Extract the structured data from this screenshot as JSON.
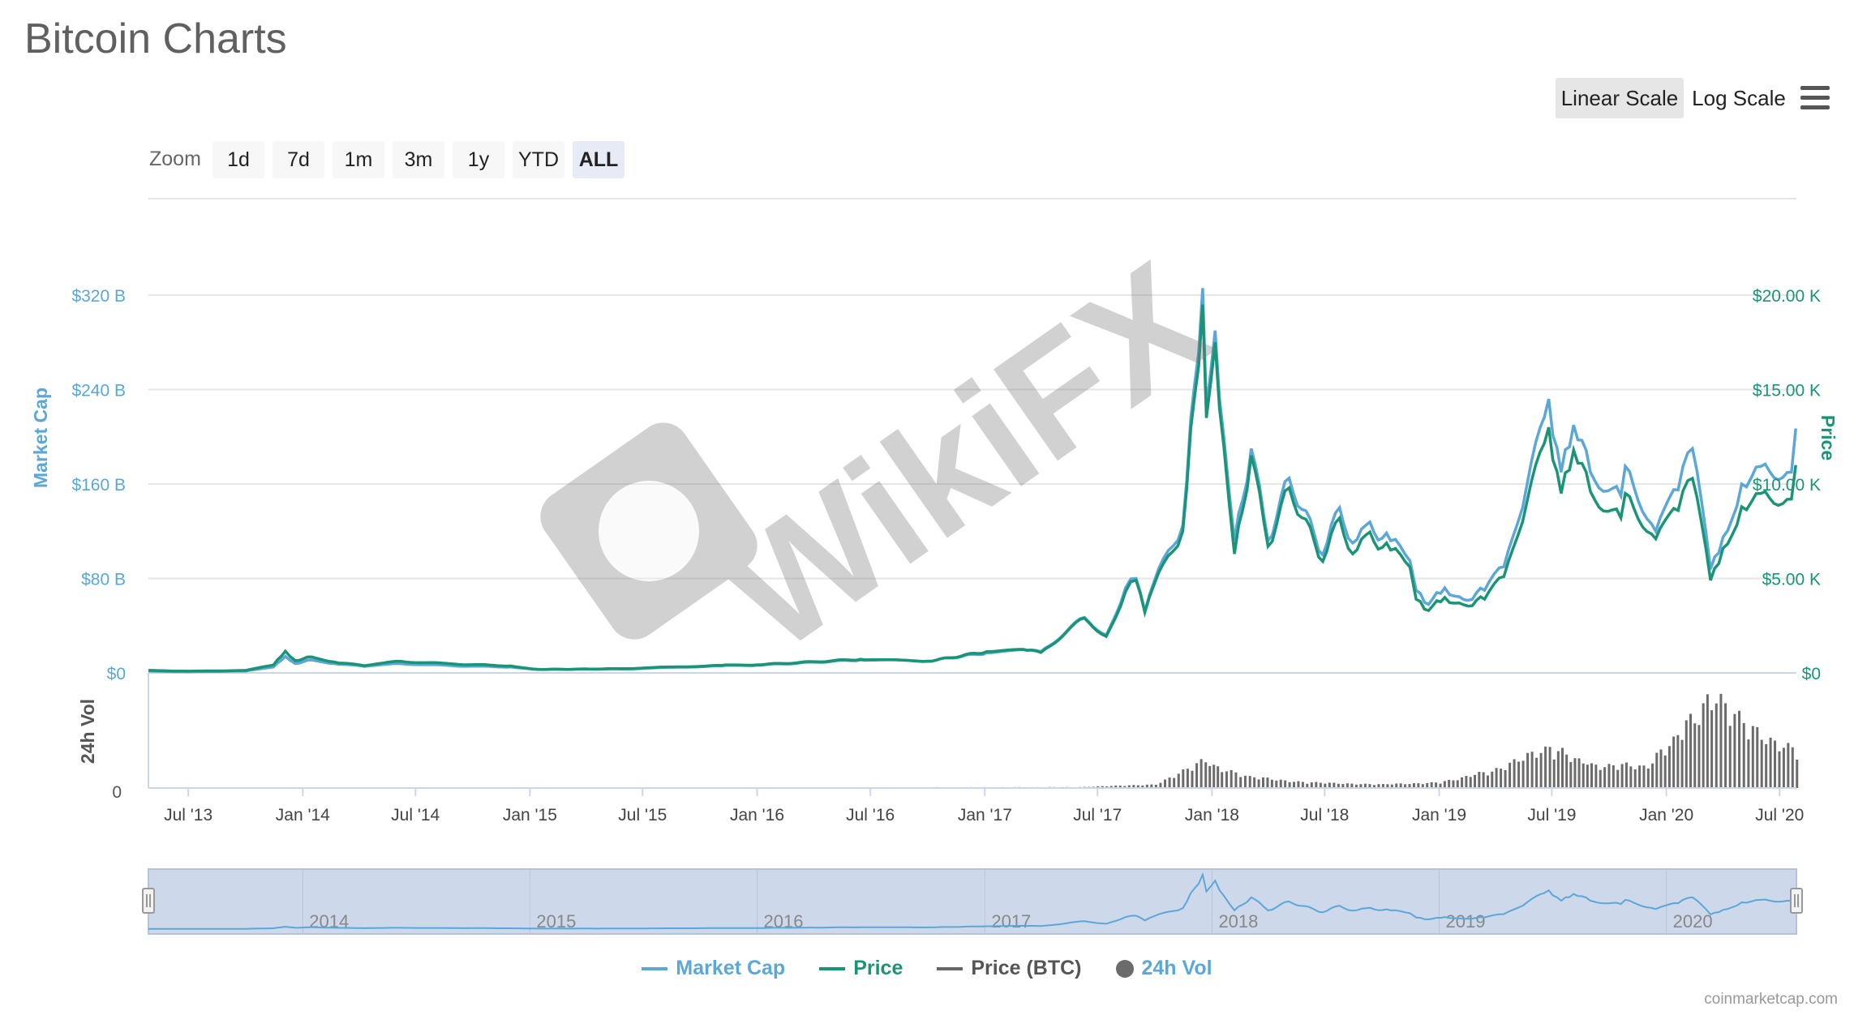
{
  "title": "Bitcoin Charts",
  "scale_buttons": {
    "linear": "Linear Scale",
    "log": "Log Scale",
    "active": "linear"
  },
  "zoom": {
    "label": "Zoom",
    "buttons": [
      "1d",
      "7d",
      "1m",
      "3m",
      "1y",
      "YTD",
      "ALL"
    ],
    "active": "ALL"
  },
  "watermark": "WikiFX",
  "credit": "coinmarketcap.com",
  "colors": {
    "market_cap": "#5aa7d8",
    "price": "#1a9476",
    "price_btc": "#666666",
    "volume": "#6b6b6b",
    "navigator_fill": "#cdd8ea"
  },
  "chart_data": {
    "type": "line",
    "x_labels": [
      "Jul '13",
      "Jan '14",
      "Jul '14",
      "Jan '15",
      "Jul '15",
      "Jan '16",
      "Jul '16",
      "Jan '17",
      "Jul '17",
      "Jan '18",
      "Jul '18",
      "Jan '19",
      "Jul '19",
      "Jan '20",
      "Jul '20"
    ],
    "x_range": [
      "2013-04-28",
      "2020-07-28"
    ],
    "left_axis": {
      "label": "Market Cap",
      "ticks": [
        "$0",
        "$80 B",
        "$160 B",
        "$240 B",
        "$320 B"
      ],
      "range": [
        0,
        320
      ]
    },
    "right_axis": {
      "label": "Price",
      "ticks": [
        "$0",
        "$5.00 K",
        "$10.00 K",
        "$15.00 K",
        "$20.00 K"
      ],
      "range": [
        0,
        20000
      ]
    },
    "volume_axis": {
      "label": "24h Vol",
      "ticks": [
        "0"
      ]
    },
    "navigator_labels": [
      "2014",
      "2015",
      "2016",
      "2017",
      "2018",
      "2019",
      "2020"
    ],
    "legend": [
      "Market Cap",
      "Price",
      "Price (BTC)",
      "24h Vol"
    ],
    "series": [
      {
        "name": "Market Cap",
        "unit": "billion USD",
        "points": [
          [
            "2013-04-28",
            1.5
          ],
          [
            "2013-07-01",
            1.0
          ],
          [
            "2013-10-01",
            1.6
          ],
          [
            "2013-11-15",
            5
          ],
          [
            "2013-12-04",
            14
          ],
          [
            "2013-12-20",
            8
          ],
          [
            "2014-01-15",
            11
          ],
          [
            "2014-02-20",
            8
          ],
          [
            "2014-04-10",
            5.5
          ],
          [
            "2014-06-01",
            8
          ],
          [
            "2014-09-01",
            6
          ],
          [
            "2014-12-01",
            5
          ],
          [
            "2015-01-15",
            3
          ],
          [
            "2015-06-01",
            3.3
          ],
          [
            "2015-11-05",
            6
          ],
          [
            "2016-01-01",
            6.5
          ],
          [
            "2016-06-15",
            11
          ],
          [
            "2016-10-01",
            10
          ],
          [
            "2017-01-04",
            17
          ],
          [
            "2017-03-10",
            19
          ],
          [
            "2017-04-01",
            18
          ],
          [
            "2017-06-10",
            47
          ],
          [
            "2017-07-15",
            32
          ],
          [
            "2017-08-15",
            72
          ],
          [
            "2017-09-01",
            80
          ],
          [
            "2017-09-15",
            52
          ],
          [
            "2017-10-15",
            97
          ],
          [
            "2017-11-15",
            125
          ],
          [
            "2017-12-17",
            326
          ],
          [
            "2017-12-23",
            225
          ],
          [
            "2018-01-06",
            290
          ],
          [
            "2018-01-20",
            200
          ],
          [
            "2018-02-06",
            112
          ],
          [
            "2018-03-05",
            190
          ],
          [
            "2018-04-01",
            112
          ],
          [
            "2018-05-05",
            165
          ],
          [
            "2018-06-28",
            100
          ],
          [
            "2018-07-25",
            140
          ],
          [
            "2018-08-15",
            110
          ],
          [
            "2018-09-05",
            125
          ],
          [
            "2018-10-15",
            112
          ],
          [
            "2018-11-15",
            95
          ],
          [
            "2018-11-25",
            70
          ],
          [
            "2018-12-15",
            58
          ],
          [
            "2019-01-10",
            72
          ],
          [
            "2019-02-10",
            62
          ],
          [
            "2019-03-15",
            70
          ],
          [
            "2019-04-15",
            90
          ],
          [
            "2019-05-15",
            140
          ],
          [
            "2019-06-26",
            232
          ],
          [
            "2019-07-16",
            170
          ],
          [
            "2019-08-05",
            210
          ],
          [
            "2019-09-01",
            170
          ],
          [
            "2019-10-20",
            150
          ],
          [
            "2019-10-27",
            175
          ],
          [
            "2019-12-15",
            120
          ],
          [
            "2020-01-20",
            155
          ],
          [
            "2020-02-12",
            190
          ],
          [
            "2020-03-12",
            88
          ],
          [
            "2020-04-01",
            115
          ],
          [
            "2020-05-01",
            160
          ],
          [
            "2020-06-01",
            175
          ],
          [
            "2020-07-20",
            170
          ],
          [
            "2020-07-27",
            207
          ]
        ]
      },
      {
        "name": "Price",
        "unit": "USD",
        "points": [
          [
            "2013-04-28",
            135
          ],
          [
            "2013-07-01",
            90
          ],
          [
            "2013-10-01",
            130
          ],
          [
            "2013-11-15",
            420
          ],
          [
            "2013-12-04",
            1150
          ],
          [
            "2013-12-20",
            650
          ],
          [
            "2014-01-15",
            850
          ],
          [
            "2014-02-20",
            580
          ],
          [
            "2014-04-10",
            380
          ],
          [
            "2014-06-01",
            620
          ],
          [
            "2014-09-01",
            470
          ],
          [
            "2014-12-01",
            370
          ],
          [
            "2015-01-15",
            180
          ],
          [
            "2015-06-01",
            225
          ],
          [
            "2015-11-05",
            400
          ],
          [
            "2016-01-01",
            430
          ],
          [
            "2016-06-15",
            720
          ],
          [
            "2016-10-01",
            610
          ],
          [
            "2017-01-04",
            1130
          ],
          [
            "2017-03-10",
            1200
          ],
          [
            "2017-04-01",
            1080
          ],
          [
            "2017-06-10",
            2900
          ],
          [
            "2017-07-15",
            1930
          ],
          [
            "2017-08-15",
            4300
          ],
          [
            "2017-09-01",
            4900
          ],
          [
            "2017-09-15",
            3200
          ],
          [
            "2017-10-15",
            5800
          ],
          [
            "2017-11-15",
            7500
          ],
          [
            "2017-12-17",
            19500
          ],
          [
            "2017-12-23",
            13500
          ],
          [
            "2018-01-06",
            17500
          ],
          [
            "2018-01-20",
            12000
          ],
          [
            "2018-02-06",
            6300
          ],
          [
            "2018-03-05",
            11500
          ],
          [
            "2018-04-01",
            6700
          ],
          [
            "2018-05-05",
            9800
          ],
          [
            "2018-06-28",
            5900
          ],
          [
            "2018-07-25",
            8200
          ],
          [
            "2018-08-15",
            6300
          ],
          [
            "2018-09-05",
            7300
          ],
          [
            "2018-10-15",
            6500
          ],
          [
            "2018-11-15",
            5600
          ],
          [
            "2018-11-25",
            3900
          ],
          [
            "2018-12-15",
            3300
          ],
          [
            "2019-01-10",
            4000
          ],
          [
            "2019-02-10",
            3600
          ],
          [
            "2019-03-15",
            3900
          ],
          [
            "2019-04-15",
            5100
          ],
          [
            "2019-05-15",
            8000
          ],
          [
            "2019-06-26",
            13000
          ],
          [
            "2019-07-16",
            9500
          ],
          [
            "2019-08-05",
            11800
          ],
          [
            "2019-09-01",
            9600
          ],
          [
            "2019-10-20",
            8200
          ],
          [
            "2019-10-27",
            9500
          ],
          [
            "2019-12-15",
            7100
          ],
          [
            "2020-01-20",
            8600
          ],
          [
            "2020-02-12",
            10300
          ],
          [
            "2020-03-12",
            4900
          ],
          [
            "2020-04-01",
            6600
          ],
          [
            "2020-05-01",
            8800
          ],
          [
            "2020-06-01",
            9500
          ],
          [
            "2020-07-20",
            9200
          ],
          [
            "2020-07-27",
            11000
          ]
        ]
      },
      {
        "name": "24h Vol",
        "unit": "relative",
        "points": [
          [
            "2013-04-28",
            0
          ],
          [
            "2017-06-01",
            0.01
          ],
          [
            "2017-10-01",
            0.04
          ],
          [
            "2017-12-20",
            0.3
          ],
          [
            "2018-01-15",
            0.2
          ],
          [
            "2018-03-01",
            0.12
          ],
          [
            "2018-06-01",
            0.06
          ],
          [
            "2018-10-01",
            0.04
          ],
          [
            "2019-01-01",
            0.06
          ],
          [
            "2019-04-01",
            0.2
          ],
          [
            "2019-06-26",
            0.44
          ],
          [
            "2019-09-01",
            0.25
          ],
          [
            "2019-12-01",
            0.24
          ],
          [
            "2020-03-12",
            0.98
          ],
          [
            "2020-05-10",
            0.65
          ],
          [
            "2020-07-27",
            0.4
          ]
        ]
      }
    ]
  }
}
